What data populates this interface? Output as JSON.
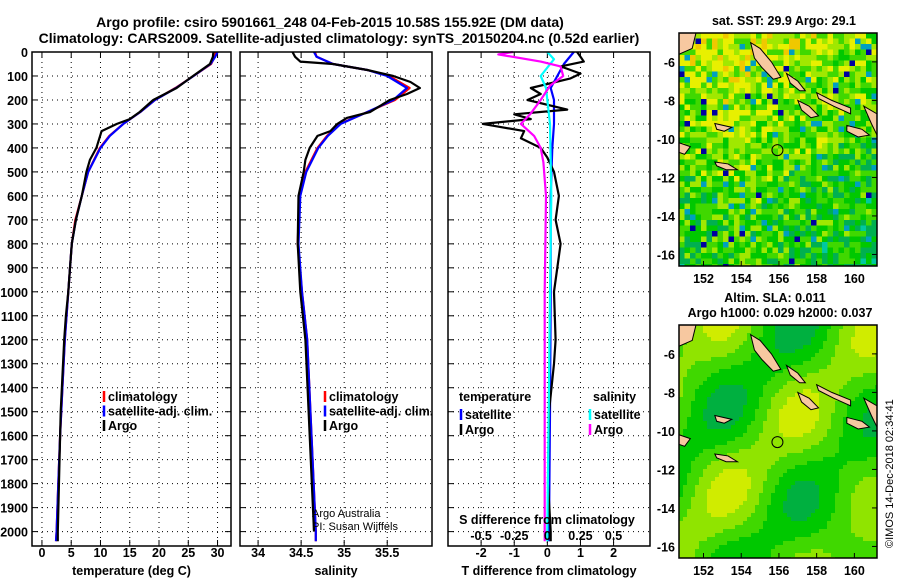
{
  "title_line1": "Argo profile: csiro 5901661_248 04-Feb-2015 10.58S 155.92E (DM data)",
  "title_line2": "Climatology: CARS2009. Satellite-adjusted climatology: synTS_20150204.nc (0.52d earlier)",
  "credit": "©IMOS 14-Dec-2018 02:34:41",
  "chart_data": [
    {
      "type": "line",
      "id": "temperature",
      "xlabel": "temperature (deg C)",
      "ylabel": "",
      "xlim": [
        -1.7,
        32.3
      ],
      "ylim": [
        2060,
        0
      ],
      "xticks": [
        0,
        5,
        10,
        15,
        20,
        25,
        30
      ],
      "yticks": [
        0,
        100,
        200,
        300,
        400,
        500,
        600,
        700,
        800,
        900,
        1000,
        1100,
        1200,
        1300,
        1400,
        1500,
        1600,
        1700,
        1800,
        1900,
        2000
      ],
      "grid": true,
      "legend": {
        "placement": "lower-center",
        "entries": [
          "climatology",
          "satellite-adj. clim.",
          "Argo"
        ]
      },
      "series": [
        {
          "name": "climatology",
          "color": "#ff0000",
          "depth": [
            0,
            20,
            50,
            100,
            150,
            200,
            250,
            300,
            350,
            400,
            500,
            600,
            700,
            800,
            900,
            1000,
            1200,
            1400,
            1600,
            1800,
            2000,
            2040
          ],
          "values": [
            29.7,
            29.5,
            28.9,
            25.9,
            22.8,
            19.3,
            16.8,
            13.9,
            11.5,
            9.9,
            7.9,
            6.8,
            5.7,
            5.1,
            4.8,
            4.5,
            3.9,
            3.5,
            3.1,
            2.8,
            2.5,
            2.4
          ]
        },
        {
          "name": "satellite-adj. clim.",
          "color": "#0000ff",
          "depth": [
            0,
            20,
            50,
            100,
            150,
            200,
            250,
            300,
            350,
            400,
            500,
            600,
            700,
            800,
            900,
            1000,
            1200,
            1400,
            1600,
            1800,
            2000,
            2040
          ],
          "values": [
            30.0,
            29.6,
            28.8,
            25.9,
            22.9,
            19.3,
            16.8,
            13.9,
            11.6,
            10.0,
            7.9,
            6.8,
            5.8,
            5.1,
            4.8,
            4.5,
            3.9,
            3.5,
            3.1,
            2.8,
            2.5,
            2.4
          ]
        },
        {
          "name": "Argo",
          "color": "#000000",
          "depth": [
            0,
            20,
            50,
            100,
            150,
            200,
            250,
            280,
            300,
            330,
            400,
            450,
            500,
            600,
            700,
            800,
            900,
            1000,
            1100,
            1200,
            1500,
            2000,
            2040
          ],
          "values": [
            29.3,
            29.2,
            28.7,
            25.8,
            23.0,
            19.0,
            16.7,
            15.0,
            12.8,
            10.2,
            9.3,
            8.2,
            7.6,
            6.8,
            5.8,
            5.1,
            4.8,
            4.5,
            4.1,
            3.8,
            3.2,
            2.7,
            2.7
          ]
        }
      ]
    },
    {
      "type": "line",
      "id": "salinity",
      "xlabel": "salinity",
      "xlim": [
        33.79,
        36.02
      ],
      "ylim": [
        2060,
        0
      ],
      "xticks": [
        34,
        34.5,
        35,
        35.5
      ],
      "xticklabels": [
        "34",
        "34.5",
        "35",
        "35.5"
      ],
      "grid": true,
      "legend": {
        "placement": "lower-center",
        "entries": [
          "climatology",
          "satellite-adj. clim.",
          "Argo"
        ]
      },
      "annotation": [
        "Argo Australia",
        "PI: Susan Wijffels"
      ],
      "series": [
        {
          "name": "climatology",
          "color": "#ff0000",
          "depth": [
            0,
            20,
            50,
            75,
            100,
            150,
            200,
            250,
            300,
            350,
            400,
            500,
            600,
            800,
            1000,
            1200,
            1600,
            2000,
            2040
          ],
          "values": [
            34.66,
            34.68,
            34.87,
            35.27,
            35.52,
            35.76,
            35.59,
            35.27,
            34.95,
            34.8,
            34.69,
            34.55,
            34.48,
            34.46,
            34.51,
            34.57,
            34.62,
            34.67,
            34.67
          ]
        },
        {
          "name": "satellite-adj. clim.",
          "color": "#0000ff",
          "depth": [
            0,
            20,
            50,
            75,
            100,
            150,
            200,
            250,
            300,
            350,
            400,
            500,
            600,
            800,
            1000,
            1200,
            1600,
            2000,
            2040
          ],
          "values": [
            34.65,
            34.68,
            34.87,
            35.27,
            35.5,
            35.73,
            35.57,
            35.27,
            34.96,
            34.81,
            34.7,
            34.56,
            34.49,
            34.47,
            34.51,
            34.57,
            34.62,
            34.67,
            34.67
          ]
        },
        {
          "name": "Argo",
          "color": "#000000",
          "depth": [
            0,
            20,
            40,
            50,
            75,
            100,
            125,
            150,
            175,
            200,
            250,
            275,
            300,
            330,
            350,
            400,
            450,
            500,
            600,
            800,
            1000,
            1200,
            1600,
            2000
          ],
          "values": [
            34.4,
            34.43,
            34.49,
            34.87,
            35.27,
            35.57,
            35.77,
            35.88,
            35.73,
            35.53,
            35.3,
            35.03,
            34.92,
            34.84,
            34.69,
            34.6,
            34.55,
            34.53,
            34.47,
            34.46,
            34.49,
            34.55,
            34.6,
            34.65
          ]
        }
      ]
    },
    {
      "type": "line",
      "id": "differences",
      "xlabel": "T difference from climatology",
      "xlabel2": "S difference from climatology",
      "xlim": [
        -3.0,
        3.1
      ],
      "ylim": [
        2060,
        0
      ],
      "xticks": [
        -2,
        -1,
        0,
        1,
        2
      ],
      "xticklabels": [
        "-2",
        "-1",
        "0",
        "1",
        "2"
      ],
      "s_xticks": [
        -0.5,
        -0.25,
        0,
        0.25,
        0.5
      ],
      "s_xticklabels": [
        "-0.5",
        "-0.25",
        "0",
        "0.25",
        "0.5"
      ],
      "s_scale_factor": 0.25,
      "grid": true,
      "legend": {
        "placement": "lower",
        "temperature_title": "temperature",
        "salinity_title": "salinity",
        "entries": [
          "satellite",
          "Argo",
          "satellite",
          "Argo"
        ]
      },
      "series": [
        {
          "name": "temperature satellite",
          "color": "#0000ff",
          "var": "T",
          "depth": [
            0,
            50,
            100,
            150,
            200,
            300,
            400,
            600,
            1000,
            1500,
            2000,
            2040
          ],
          "values": [
            0.8,
            0.5,
            0.3,
            0.1,
            0.2,
            0.2,
            0.15,
            0.1,
            0.1,
            0.08,
            0.05,
            0.05
          ]
        },
        {
          "name": "temperature Argo",
          "color": "#000000",
          "var": "T",
          "depth": [
            0,
            20,
            40,
            60,
            90,
            110,
            150,
            175,
            200,
            240,
            260,
            280,
            300,
            330,
            360,
            400,
            440,
            500,
            600,
            700,
            800,
            900,
            1000,
            1200,
            1300,
            1500,
            1800,
            2000,
            2040
          ],
          "values": [
            0.9,
            1.0,
            1.1,
            0.4,
            1.0,
            0.7,
            -0.5,
            -0.2,
            -0.6,
            0.6,
            -1.0,
            -0.5,
            -1.95,
            -0.7,
            -0.8,
            -0.2,
            0.0,
            0.2,
            0.35,
            0.25,
            0.4,
            0.3,
            0.2,
            0.25,
            0.2,
            0.05,
            0.02,
            0.1,
            0.1
          ]
        },
        {
          "name": "salinity satellite",
          "color": "#00ffff",
          "var": "S",
          "depth": [
            0,
            30,
            100,
            150,
            300,
            600,
            1000,
            1500,
            2000,
            2040
          ],
          "values": [
            0.0,
            0.05,
            -0.05,
            -0.01,
            0.02,
            0.03,
            0.02,
            0.01,
            0.0,
            0.0
          ]
        },
        {
          "name": "salinity Argo",
          "color": "#ff00ff",
          "var": "S",
          "depth": [
            0,
            10,
            40,
            60,
            100,
            140,
            200,
            260,
            300,
            350,
            400,
            460,
            600,
            1000,
            1500,
            2000,
            2040
          ],
          "values": [
            -0.26,
            -0.37,
            -0.05,
            0.1,
            0.12,
            0.02,
            -0.05,
            -0.13,
            -0.2,
            -0.1,
            -0.05,
            -0.03,
            -0.01,
            -0.02,
            -0.02,
            -0.02,
            -0.02
          ]
        }
      ]
    },
    {
      "type": "heatmap",
      "id": "sst_map",
      "title": "sat. SST: 29.9 Argo: 29.1",
      "xlim": [
        150.7,
        161.2
      ],
      "ylim": [
        -16.6,
        -4.5
      ],
      "xticks": [
        152,
        154,
        156,
        158,
        160
      ],
      "yticks": [
        -6,
        -8,
        -10,
        -12,
        -14,
        -16
      ],
      "marker": {
        "lon": 155.92,
        "lat": -10.58
      },
      "colors": [
        "#0000a0",
        "#00a0c0",
        "#00c8a0",
        "#00b050",
        "#00c800",
        "#40d800",
        "#a0e800",
        "#e8f000",
        "#f0c800"
      ]
    },
    {
      "type": "heatmap",
      "id": "sla_map",
      "title": "Altim. SLA: 0.011",
      "subtitle": "Argo h1000: 0.029 h2000: 0.037",
      "xlim": [
        150.7,
        161.2
      ],
      "ylim": [
        -16.6,
        -4.5
      ],
      "xticks": [
        152,
        154,
        156,
        158,
        160
      ],
      "yticks": [
        -6,
        -8,
        -10,
        -12,
        -14,
        -16
      ],
      "marker": {
        "lon": 155.92,
        "lat": -10.58
      },
      "colors": [
        "#00b040",
        "#00c800",
        "#40d800",
        "#90e400",
        "#d0ec00"
      ]
    }
  ],
  "land_color": "#f7c8a0",
  "land": [
    [
      [
        150.7,
        -4.5
      ],
      [
        151.6,
        -4.5
      ],
      [
        151.4,
        -5.3
      ],
      [
        150.7,
        -5.6
      ]
    ],
    [
      [
        154.5,
        -5.0
      ],
      [
        155.0,
        -5.3
      ],
      [
        155.6,
        -6.0
      ],
      [
        156.1,
        -6.8
      ],
      [
        155.7,
        -6.9
      ],
      [
        155.1,
        -6.3
      ],
      [
        154.7,
        -5.8
      ]
    ],
    [
      [
        156.4,
        -6.6
      ],
      [
        157.0,
        -7.0
      ],
      [
        157.4,
        -7.5
      ],
      [
        157.1,
        -7.5
      ],
      [
        156.6,
        -7.1
      ]
    ],
    [
      [
        158.0,
        -7.6
      ],
      [
        158.8,
        -8.0
      ],
      [
        159.8,
        -8.4
      ],
      [
        159.8,
        -8.7
      ],
      [
        158.9,
        -8.3
      ],
      [
        158.1,
        -7.9
      ]
    ],
    [
      [
        160.5,
        -8.3
      ],
      [
        161.2,
        -8.7
      ],
      [
        161.2,
        -9.8
      ],
      [
        160.9,
        -9.2
      ]
    ],
    [
      [
        159.6,
        -9.3
      ],
      [
        160.4,
        -9.5
      ],
      [
        160.8,
        -9.8
      ],
      [
        160.2,
        -9.9
      ],
      [
        159.6,
        -9.6
      ]
    ],
    [
      [
        157.0,
        -8.0
      ],
      [
        157.6,
        -8.3
      ],
      [
        158.1,
        -8.8
      ],
      [
        157.7,
        -8.9
      ],
      [
        157.2,
        -8.5
      ]
    ],
    [
      [
        150.7,
        -10.2
      ],
      [
        151.3,
        -10.4
      ],
      [
        151.0,
        -10.8
      ],
      [
        150.7,
        -10.7
      ]
    ],
    [
      [
        152.6,
        -11.2
      ],
      [
        153.3,
        -11.3
      ],
      [
        153.8,
        -11.6
      ],
      [
        153.2,
        -11.6
      ],
      [
        152.7,
        -11.4
      ]
    ],
    [
      [
        152.6,
        -9.2
      ],
      [
        153.5,
        -9.4
      ],
      [
        153.1,
        -9.6
      ],
      [
        152.7,
        -9.5
      ]
    ]
  ]
}
